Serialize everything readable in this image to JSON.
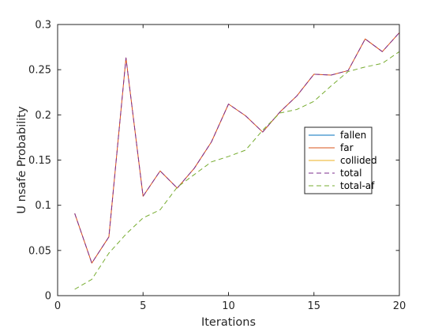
{
  "chart_data": {
    "type": "line",
    "xlabel": "Iterations",
    "ylabel": "U nsafe Probability",
    "xlim": [
      0,
      20
    ],
    "ylim": [
      0,
      0.3
    ],
    "x_ticks": [
      0,
      5,
      10,
      15,
      20
    ],
    "x_tick_labels": [
      "0",
      "5",
      "10",
      "15",
      "20"
    ],
    "y_ticks": [
      0,
      0.05,
      0.1,
      0.15,
      0.2,
      0.25,
      0.3
    ],
    "y_tick_labels": [
      "0",
      "0.05",
      "0.1",
      "0.15",
      "0.2",
      "0.25",
      "0.3"
    ],
    "grid": false,
    "legend_position": "right",
    "x": [
      1,
      2,
      3,
      4,
      5,
      6,
      7,
      8,
      9,
      10,
      11,
      12,
      13,
      14,
      15,
      16,
      17,
      18,
      19,
      20
    ],
    "series": [
      {
        "name": "fallen",
        "color": "#0072bd",
        "dash": "solid",
        "values": [
          0,
          0,
          0,
          0,
          0,
          0,
          0,
          0,
          0,
          0,
          0,
          0,
          0,
          0,
          0,
          0,
          0,
          0,
          0,
          0
        ]
      },
      {
        "name": "far",
        "color": "#d95319",
        "dash": "solid",
        "values": [
          0.091,
          0.036,
          0.065,
          0.263,
          0.11,
          0.138,
          0.119,
          0.141,
          0.17,
          0.212,
          0.199,
          0.181,
          0.203,
          0.221,
          0.245,
          0.244,
          0.249,
          0.284,
          0.27,
          0.291
        ]
      },
      {
        "name": "collided",
        "color": "#edb120",
        "dash": "solid",
        "values": [
          0,
          0,
          0,
          0,
          0,
          0,
          0,
          0,
          0,
          0,
          0,
          0,
          0,
          0,
          0,
          0,
          0,
          0,
          0,
          0
        ]
      },
      {
        "name": "total",
        "color": "#7e2f8e",
        "dash": "dashed",
        "values": [
          0.091,
          0.036,
          0.065,
          0.263,
          0.11,
          0.138,
          0.119,
          0.141,
          0.17,
          0.212,
          0.199,
          0.181,
          0.203,
          0.221,
          0.245,
          0.244,
          0.249,
          0.284,
          0.27,
          0.291
        ]
      },
      {
        "name": "total-af",
        "color": "#77ac30",
        "dash": "dashed",
        "values": [
          0.007,
          0.018,
          0.047,
          0.068,
          0.086,
          0.095,
          0.12,
          0.134,
          0.148,
          0.154,
          0.161,
          0.183,
          0.202,
          0.206,
          0.215,
          0.232,
          0.248,
          0.253,
          0.257,
          0.27
        ]
      }
    ]
  }
}
